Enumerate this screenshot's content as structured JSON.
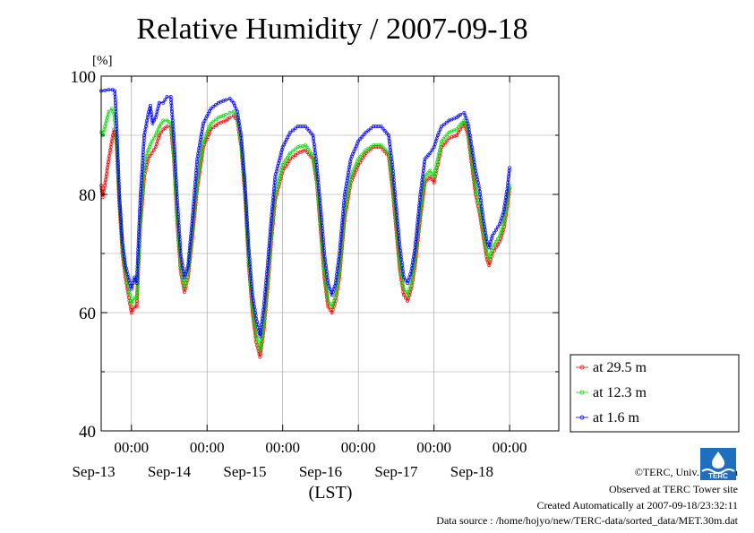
{
  "chart_data": {
    "type": "line",
    "title": "Relative Humidity / 2007-09-18",
    "ylabel": "[%]",
    "xlabel": "(LST)",
    "ylim": [
      40,
      100
    ],
    "yticks": [
      40,
      60,
      80,
      100
    ],
    "ygrid": [
      50,
      60,
      70,
      80,
      90
    ],
    "xlim_days": [
      12.6,
      18.65
    ],
    "time_ticks": [
      {
        "day": 13.0,
        "label": "00:00"
      },
      {
        "day": 14.0,
        "label": "00:00"
      },
      {
        "day": 15.0,
        "label": "00:00"
      },
      {
        "day": 16.0,
        "label": "00:00"
      },
      {
        "day": 17.0,
        "label": "00:00"
      },
      {
        "day": 18.0,
        "label": "00:00"
      }
    ],
    "date_labels": [
      {
        "day": 12.5,
        "label": "Sep-13"
      },
      {
        "day": 13.5,
        "label": "Sep-14"
      },
      {
        "day": 14.5,
        "label": "Sep-15"
      },
      {
        "day": 15.5,
        "label": "Sep-16"
      },
      {
        "day": 16.5,
        "label": "Sep-17"
      },
      {
        "day": 17.5,
        "label": "Sep-18"
      }
    ],
    "legend_position": "right",
    "series": [
      {
        "name": "at 29.5 m",
        "color": "#ff0000",
        "points": [
          [
            12.6,
            81.5
          ],
          [
            12.62,
            79.5
          ],
          [
            12.66,
            82.5
          ],
          [
            12.7,
            86
          ],
          [
            12.74,
            89
          ],
          [
            12.77,
            91
          ],
          [
            12.8,
            89
          ],
          [
            12.84,
            78
          ],
          [
            12.88,
            70
          ],
          [
            12.92,
            66
          ],
          [
            12.96,
            63
          ],
          [
            13.0,
            60
          ],
          [
            13.04,
            61
          ],
          [
            13.07,
            61
          ],
          [
            13.12,
            75
          ],
          [
            13.17,
            83
          ],
          [
            13.22,
            86
          ],
          [
            13.27,
            87
          ],
          [
            13.32,
            88
          ],
          [
            13.37,
            90
          ],
          [
            13.42,
            91
          ],
          [
            13.47,
            91.5
          ],
          [
            13.52,
            91.5
          ],
          [
            13.56,
            86
          ],
          [
            13.6,
            76
          ],
          [
            13.65,
            67
          ],
          [
            13.7,
            63.5
          ],
          [
            13.75,
            66
          ],
          [
            13.8,
            72
          ],
          [
            13.87,
            81
          ],
          [
            13.95,
            88
          ],
          [
            14.05,
            91
          ],
          [
            14.15,
            92
          ],
          [
            14.25,
            92.5
          ],
          [
            14.3,
            93
          ],
          [
            14.35,
            93.3
          ],
          [
            14.4,
            92.5
          ],
          [
            14.45,
            88
          ],
          [
            14.5,
            80
          ],
          [
            14.55,
            68
          ],
          [
            14.6,
            60
          ],
          [
            14.65,
            55
          ],
          [
            14.7,
            52.5
          ],
          [
            14.75,
            57
          ],
          [
            14.8,
            64
          ],
          [
            14.85,
            72
          ],
          [
            14.9,
            79
          ],
          [
            15.0,
            84
          ],
          [
            15.1,
            86
          ],
          [
            15.2,
            87
          ],
          [
            15.3,
            87.5
          ],
          [
            15.4,
            86
          ],
          [
            15.45,
            82
          ],
          [
            15.5,
            74
          ],
          [
            15.55,
            66
          ],
          [
            15.6,
            61
          ],
          [
            15.65,
            60
          ],
          [
            15.7,
            62
          ],
          [
            15.75,
            66
          ],
          [
            15.82,
            76
          ],
          [
            15.9,
            82
          ],
          [
            16.0,
            85
          ],
          [
            16.1,
            87
          ],
          [
            16.2,
            88
          ],
          [
            16.3,
            88
          ],
          [
            16.4,
            86.5
          ],
          [
            16.45,
            81
          ],
          [
            16.5,
            74
          ],
          [
            16.55,
            67
          ],
          [
            16.6,
            63
          ],
          [
            16.65,
            62
          ],
          [
            16.7,
            64
          ],
          [
            16.75,
            68
          ],
          [
            16.82,
            76
          ],
          [
            16.88,
            82
          ],
          [
            16.95,
            83
          ],
          [
            17.0,
            82
          ],
          [
            17.05,
            85
          ],
          [
            17.1,
            88
          ],
          [
            17.2,
            89.5
          ],
          [
            17.3,
            90
          ],
          [
            17.35,
            91
          ],
          [
            17.4,
            92
          ],
          [
            17.45,
            90
          ],
          [
            17.5,
            85
          ],
          [
            17.55,
            80
          ],
          [
            17.6,
            77
          ],
          [
            17.65,
            73
          ],
          [
            17.7,
            69
          ],
          [
            17.73,
            68
          ],
          [
            17.77,
            70
          ],
          [
            17.82,
            71
          ],
          [
            17.87,
            72
          ],
          [
            17.92,
            74
          ],
          [
            17.97,
            78
          ],
          [
            18.0,
            81
          ]
        ]
      },
      {
        "name": "at 12.3 m",
        "color": "#00dd00",
        "points": [
          [
            12.6,
            90.5
          ],
          [
            12.62,
            90
          ],
          [
            12.66,
            92
          ],
          [
            12.7,
            94
          ],
          [
            12.74,
            94.5
          ],
          [
            12.77,
            93.5
          ],
          [
            12.8,
            90
          ],
          [
            12.84,
            79
          ],
          [
            12.88,
            71
          ],
          [
            12.92,
            67
          ],
          [
            12.96,
            64
          ],
          [
            13.0,
            61.5
          ],
          [
            13.04,
            62.5
          ],
          [
            13.07,
            62.5
          ],
          [
            13.12,
            76
          ],
          [
            13.17,
            85
          ],
          [
            13.22,
            87.5
          ],
          [
            13.27,
            89
          ],
          [
            13.32,
            90
          ],
          [
            13.37,
            91.5
          ],
          [
            13.42,
            92.5
          ],
          [
            13.47,
            92.5
          ],
          [
            13.52,
            92
          ],
          [
            13.56,
            87
          ],
          [
            13.6,
            77
          ],
          [
            13.65,
            68
          ],
          [
            13.7,
            64.5
          ],
          [
            13.75,
            67
          ],
          [
            13.8,
            73
          ],
          [
            13.87,
            82
          ],
          [
            13.95,
            89
          ],
          [
            14.05,
            92
          ],
          [
            14.15,
            93
          ],
          [
            14.25,
            93.5
          ],
          [
            14.3,
            93.8
          ],
          [
            14.35,
            94
          ],
          [
            14.4,
            93
          ],
          [
            14.45,
            88.5
          ],
          [
            14.5,
            81
          ],
          [
            14.55,
            69
          ],
          [
            14.6,
            61
          ],
          [
            14.65,
            56
          ],
          [
            14.7,
            53.5
          ],
          [
            14.75,
            58
          ],
          [
            14.8,
            65
          ],
          [
            14.85,
            73
          ],
          [
            14.9,
            80
          ],
          [
            15.0,
            85
          ],
          [
            15.1,
            87
          ],
          [
            15.2,
            88
          ],
          [
            15.3,
            88.3
          ],
          [
            15.4,
            86.5
          ],
          [
            15.45,
            82.5
          ],
          [
            15.5,
            75
          ],
          [
            15.55,
            67
          ],
          [
            15.6,
            62
          ],
          [
            15.65,
            61
          ],
          [
            15.7,
            63
          ],
          [
            15.75,
            67
          ],
          [
            15.82,
            77
          ],
          [
            15.9,
            83
          ],
          [
            16.0,
            86
          ],
          [
            16.1,
            87.5
          ],
          [
            16.2,
            88.3
          ],
          [
            16.3,
            88.3
          ],
          [
            16.4,
            87
          ],
          [
            16.45,
            82
          ],
          [
            16.5,
            75
          ],
          [
            16.55,
            68
          ],
          [
            16.6,
            64
          ],
          [
            16.65,
            63
          ],
          [
            16.7,
            65
          ],
          [
            16.75,
            69
          ],
          [
            16.82,
            77
          ],
          [
            16.88,
            83
          ],
          [
            16.95,
            84
          ],
          [
            17.0,
            83
          ],
          [
            17.05,
            86
          ],
          [
            17.1,
            89
          ],
          [
            17.2,
            90.5
          ],
          [
            17.3,
            91
          ],
          [
            17.35,
            91.8
          ],
          [
            17.4,
            92.5
          ],
          [
            17.45,
            90.5
          ],
          [
            17.5,
            86
          ],
          [
            17.55,
            81
          ],
          [
            17.6,
            78
          ],
          [
            17.65,
            74
          ],
          [
            17.7,
            70
          ],
          [
            17.73,
            69
          ],
          [
            17.77,
            71
          ],
          [
            17.82,
            72
          ],
          [
            17.87,
            73
          ],
          [
            17.92,
            75
          ],
          [
            17.97,
            79
          ],
          [
            18.0,
            81.5
          ]
        ]
      },
      {
        "name": "at 1.6 m",
        "color": "#0000ff",
        "points": [
          [
            12.6,
            97.5
          ],
          [
            12.65,
            97.6
          ],
          [
            12.7,
            97.7
          ],
          [
            12.75,
            97.7
          ],
          [
            12.78,
            97.5
          ],
          [
            12.8,
            93
          ],
          [
            12.84,
            80
          ],
          [
            12.88,
            72
          ],
          [
            12.92,
            68
          ],
          [
            12.96,
            66
          ],
          [
            13.0,
            64
          ],
          [
            13.04,
            66
          ],
          [
            13.07,
            65
          ],
          [
            13.12,
            80
          ],
          [
            13.17,
            90
          ],
          [
            13.22,
            93.5
          ],
          [
            13.25,
            95
          ],
          [
            13.28,
            92
          ],
          [
            13.32,
            93
          ],
          [
            13.37,
            95.5
          ],
          [
            13.42,
            95.5
          ],
          [
            13.47,
            96.5
          ],
          [
            13.52,
            96.5
          ],
          [
            13.56,
            90
          ],
          [
            13.6,
            80
          ],
          [
            13.65,
            70
          ],
          [
            13.7,
            66
          ],
          [
            13.75,
            68
          ],
          [
            13.8,
            75
          ],
          [
            13.87,
            86
          ],
          [
            13.95,
            92
          ],
          [
            14.05,
            94.5
          ],
          [
            14.15,
            95.5
          ],
          [
            14.25,
            96
          ],
          [
            14.3,
            96.2
          ],
          [
            14.35,
            95.5
          ],
          [
            14.4,
            94
          ],
          [
            14.45,
            90
          ],
          [
            14.5,
            82
          ],
          [
            14.55,
            71
          ],
          [
            14.6,
            63
          ],
          [
            14.65,
            59
          ],
          [
            14.7,
            56
          ],
          [
            14.75,
            61
          ],
          [
            14.8,
            68
          ],
          [
            14.85,
            76
          ],
          [
            14.9,
            83
          ],
          [
            15.0,
            88
          ],
          [
            15.1,
            90.5
          ],
          [
            15.2,
            91.5
          ],
          [
            15.3,
            91.5
          ],
          [
            15.4,
            90
          ],
          [
            15.45,
            85
          ],
          [
            15.5,
            78
          ],
          [
            15.55,
            70
          ],
          [
            15.6,
            65
          ],
          [
            15.65,
            63
          ],
          [
            15.7,
            65
          ],
          [
            15.75,
            70
          ],
          [
            15.82,
            80
          ],
          [
            15.9,
            86
          ],
          [
            16.0,
            89
          ],
          [
            16.1,
            90.5
          ],
          [
            16.2,
            91.5
          ],
          [
            16.3,
            91.5
          ],
          [
            16.4,
            90
          ],
          [
            16.45,
            85
          ],
          [
            16.5,
            78
          ],
          [
            16.55,
            71
          ],
          [
            16.6,
            66
          ],
          [
            16.65,
            65
          ],
          [
            16.7,
            67
          ],
          [
            16.75,
            71
          ],
          [
            16.82,
            80
          ],
          [
            16.88,
            86
          ],
          [
            16.95,
            87
          ],
          [
            17.0,
            88
          ],
          [
            17.05,
            90
          ],
          [
            17.1,
            91.5
          ],
          [
            17.2,
            92.5
          ],
          [
            17.3,
            93
          ],
          [
            17.35,
            93.5
          ],
          [
            17.4,
            93.8
          ],
          [
            17.45,
            92
          ],
          [
            17.5,
            88
          ],
          [
            17.55,
            84
          ],
          [
            17.6,
            81
          ],
          [
            17.65,
            76
          ],
          [
            17.7,
            72
          ],
          [
            17.73,
            71
          ],
          [
            17.77,
            73
          ],
          [
            17.82,
            74
          ],
          [
            17.87,
            75
          ],
          [
            17.92,
            77
          ],
          [
            17.97,
            81
          ],
          [
            18.0,
            84.5
          ]
        ]
      }
    ]
  },
  "credits": {
    "copyright": "©TERC, Univ. Tsukuba",
    "observed": "Observed at TERC Tower site",
    "created": "Created Automatically at 2007-09-18/23:32:11",
    "source": "Data source : /home/hojyo/new/TERC-data/sorted_data/MET.30m.dat"
  },
  "logo": {
    "text": "TERC",
    "color": "#1e6fc0"
  }
}
